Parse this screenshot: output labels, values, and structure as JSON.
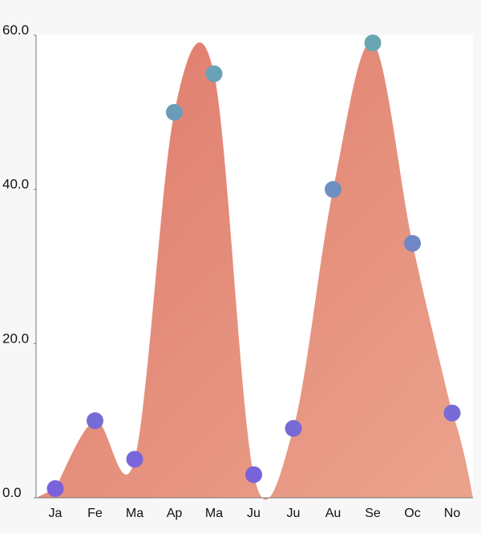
{
  "chart_data": {
    "type": "area",
    "categories": [
      "Ja",
      "Fe",
      "Ma",
      "Ap",
      "Ma",
      "Ju",
      "Ju",
      "Au",
      "Se",
      "Oc",
      "No"
    ],
    "values": [
      1.2,
      10,
      5,
      50,
      55,
      3,
      9,
      40,
      59,
      33,
      11
    ],
    "ylim": [
      0,
      60
    ],
    "yticks": [
      {
        "value": 0,
        "label": "0.0"
      },
      {
        "value": 20,
        "label": "20.0"
      },
      {
        "value": 40,
        "label": "40.0"
      },
      {
        "value": 60,
        "label": "60.0"
      }
    ],
    "area_colors": [
      "#df7a6c",
      "#eba38d"
    ],
    "point_colors": [
      "#68a8b2",
      "#7a5fdc"
    ]
  }
}
